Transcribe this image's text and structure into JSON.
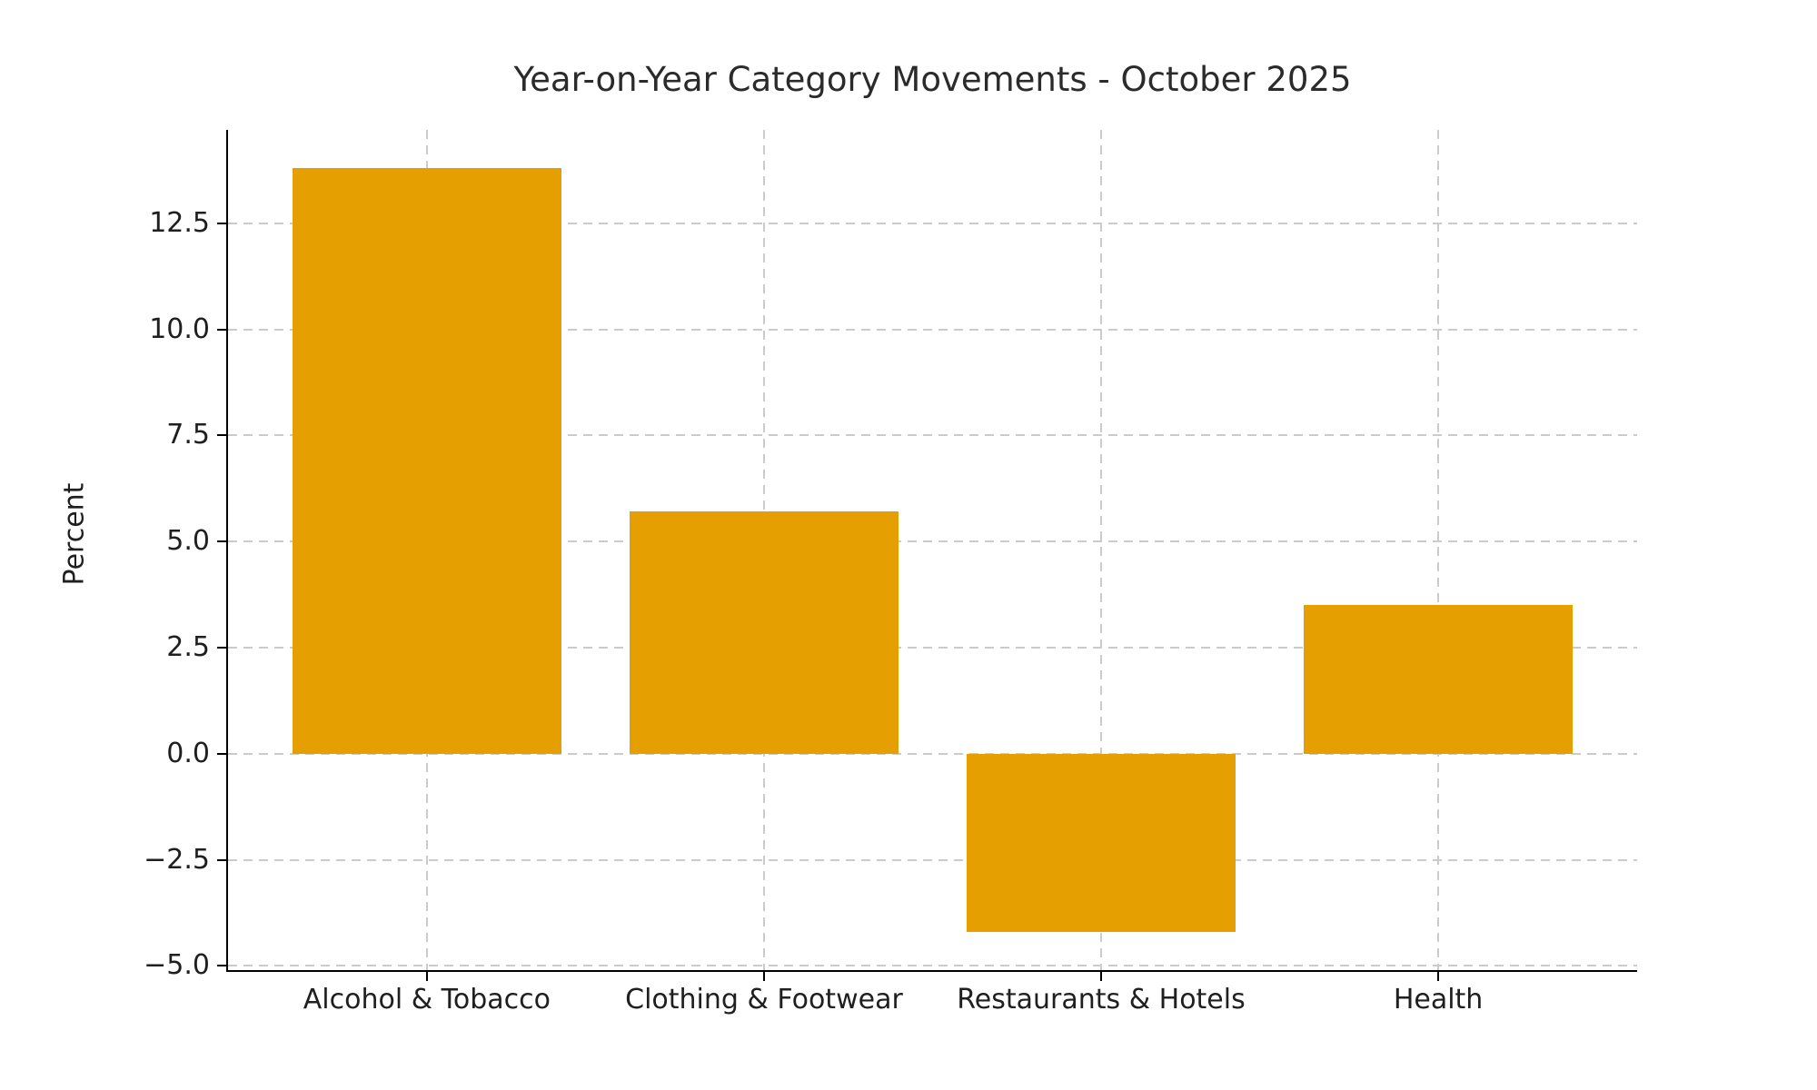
{
  "chart_data": {
    "type": "bar",
    "title": "Year-on-Year Category Movements - October 2025",
    "ylabel": "Percent",
    "xlabel": "",
    "categories": [
      "Alcohol & Tobacco",
      "Clothing & Footwear",
      "Restaurants & Hotels",
      "Health"
    ],
    "values": [
      13.8,
      5.7,
      -4.2,
      3.5
    ],
    "bar_color": "#E69F00",
    "ylim": [
      -5.1,
      14.7
    ],
    "yticks": [
      -5.0,
      -2.5,
      0.0,
      2.5,
      5.0,
      7.5,
      10.0,
      12.5
    ],
    "xlim": [
      -0.59,
      3.59
    ],
    "bar_width": 0.8,
    "grid": true,
    "grid_linestyle": "dashed",
    "legend_position": "none",
    "colors": {
      "background": "#ffffff",
      "spine": "#000000",
      "gridline": "#cbcbcb",
      "tick_text": "#1f1f1f",
      "title_text": "#2b2b2b"
    }
  }
}
